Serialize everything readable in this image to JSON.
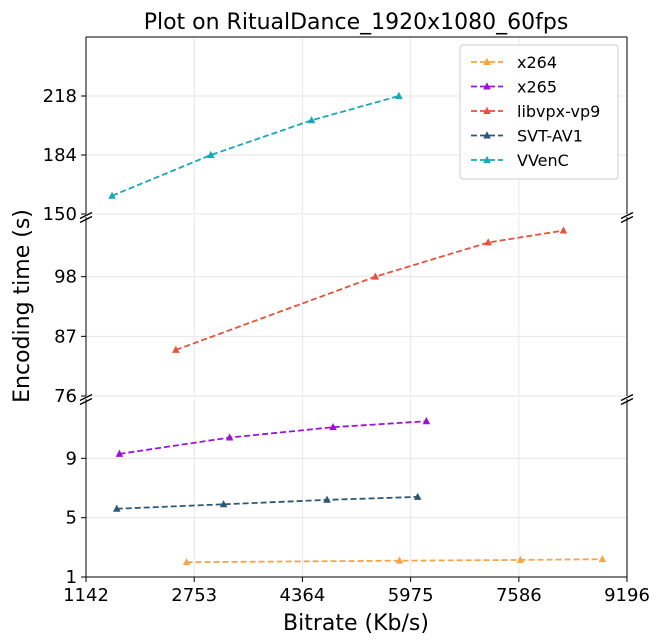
{
  "chart_data": {
    "type": "line",
    "title": "Plot on RitualDance_1920x1080_60fps",
    "xlabel": "Bitrate (Kb/s)",
    "ylabel": "Encoding time (s)",
    "x_ticks": [
      "1142",
      "2753",
      "4364",
      "5975",
      "7586",
      "9196"
    ],
    "xlim": [
      1142,
      9196
    ],
    "grid": true,
    "legend_position": "top-right",
    "panels": [
      {
        "name": "top",
        "ylim": [
          150,
          252
        ],
        "y_ticks": [
          "150",
          "184",
          "218"
        ]
      },
      {
        "name": "middle",
        "ylim": [
          76,
          109
        ],
        "y_ticks": [
          "76",
          "87",
          "98"
        ]
      },
      {
        "name": "bottom",
        "ylim": [
          1,
          13
        ],
        "y_ticks": [
          "1",
          "5",
          "9"
        ]
      }
    ],
    "series": [
      {
        "name": "x264",
        "color": "#f5a54a",
        "panel": "bottom",
        "x": [
          2640,
          5810,
          7610,
          8830
        ],
        "y": [
          2.0,
          2.1,
          2.15,
          2.2
        ]
      },
      {
        "name": "x265",
        "color": "#9b14d6",
        "panel": "bottom",
        "x": [
          1640,
          3280,
          4820,
          6210
        ],
        "y": [
          9.3,
          10.4,
          11.1,
          11.5
        ]
      },
      {
        "name": "libvpx-vp9",
        "color": "#e5533c",
        "panel": "middle",
        "x": [
          2480,
          5450,
          7130,
          8250
        ],
        "y": [
          84.5,
          98.0,
          104.3,
          106.5
        ]
      },
      {
        "name": "SVT-AV1",
        "color": "#2b5876",
        "panel": "bottom",
        "x": [
          1600,
          3190,
          4730,
          6080
        ],
        "y": [
          5.6,
          5.9,
          6.2,
          6.4
        ]
      },
      {
        "name": "VVenC",
        "color": "#17a9b6",
        "panel": "top",
        "x": [
          1530,
          3000,
          4500,
          5800
        ],
        "y": [
          160.5,
          184.0,
          204.0,
          218.0
        ]
      }
    ]
  }
}
